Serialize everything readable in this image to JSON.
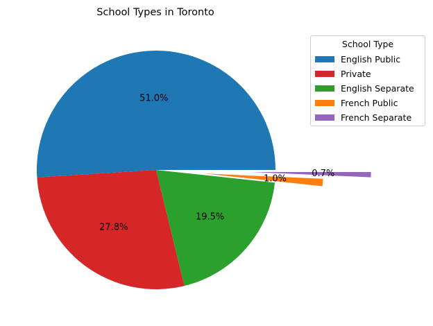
{
  "chart_data": {
    "type": "pie",
    "title": "School Types in Toronto",
    "legend_title": "School Type",
    "legend_position": "upper-right",
    "categories": [
      "English Public",
      "Private",
      "English Separate",
      "French Public",
      "French Separate"
    ],
    "values": [
      51.0,
      27.8,
      19.5,
      1.0,
      0.7
    ],
    "labels": [
      "51.0%",
      "27.8%",
      "19.5%",
      "1.0%",
      "0.7%"
    ],
    "colors": [
      "#1f77b4",
      "#d62728",
      "#2ca02c",
      "#ff7f0e",
      "#9467bd"
    ],
    "explode": [
      0,
      0,
      0,
      0.4,
      0.8
    ]
  }
}
